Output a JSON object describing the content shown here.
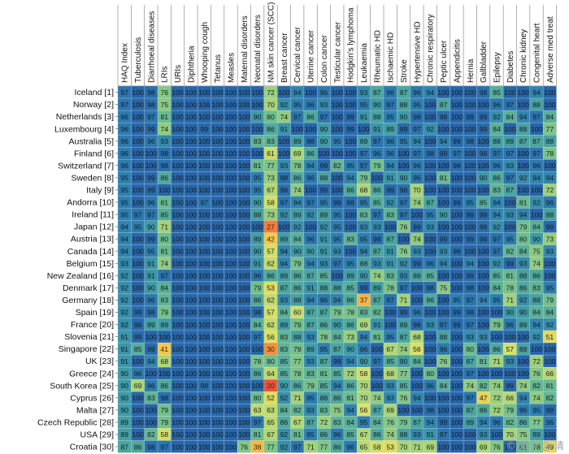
{
  "chart_data": {
    "type": "heatmap",
    "title": "",
    "color_scale": {
      "domain": [
        20,
        100
      ],
      "stops": [
        {
          "v": 20,
          "color": "#e8543a"
        },
        {
          "v": 30,
          "color": "#f0903e"
        },
        {
          "v": 40,
          "color": "#f3c54a"
        },
        {
          "v": 55,
          "color": "#dce168"
        },
        {
          "v": 70,
          "color": "#a9d37a"
        },
        {
          "v": 80,
          "color": "#6fbd8f"
        },
        {
          "v": 90,
          "color": "#3f9aa6"
        },
        {
          "v": 95,
          "color": "#2f7fb0"
        },
        {
          "v": 100,
          "color": "#2866a8"
        }
      ]
    },
    "columns": [
      "HAQ Index",
      "Tuberculosis",
      "Diarrhoeal diseases",
      "LRIs",
      "URIs",
      "Diphtheria",
      "Whooping cough",
      "Tetanus",
      "Measles",
      "Maternal disorders",
      "Neonatal disorders",
      "NM skin cancer (SCC)",
      "Breast cancer",
      "Cervical cancer",
      "Uterine cancer",
      "Colon cancer",
      "Testicular cancer",
      "Hodgkin's lymphoma",
      "Leukaemia",
      "Rheumatic HD",
      "Ischaemic HD",
      "Stroke",
      "Hypertensive HD",
      "Chronic respiratory",
      "Peptic ulcer",
      "Appendicitis",
      "Hernia",
      "Gallbladder",
      "Epilepsy",
      "Diabetes",
      "Chronic kidney",
      "Congenital heart",
      "Adverse med treat"
    ],
    "rows": [
      {
        "label": "Iceland [1]",
        "values": [
          97,
          100,
          98,
          76,
          100,
          100,
          100,
          100,
          100,
          100,
          100,
          72,
          100,
          94,
          100,
          96,
          100,
          100,
          93,
          87,
          96,
          87,
          96,
          94,
          100,
          100,
          100,
          98,
          85,
          100,
          100,
          94,
          100
        ]
      },
      {
        "label": "Norway [2]",
        "values": [
          97,
          100,
          98,
          75,
          100,
          100,
          100,
          100,
          100,
          100,
          100,
          70,
          92,
          95,
          96,
          93,
          100,
          100,
          95,
          90,
          97,
          88,
          95,
          100,
          87,
          100,
          100,
          100,
          96,
          97,
          100,
          88,
          100
        ]
      },
      {
        "label": "Netherlands [3]",
        "values": [
          96,
          100,
          97,
          81,
          100,
          100,
          100,
          100,
          100,
          100,
          90,
          80,
          74,
          97,
          86,
          97,
          100,
          99,
          91,
          88,
          95,
          90,
          98,
          100,
          98,
          100,
          99,
          99,
          92,
          84,
          94,
          97,
          84
        ]
      },
      {
        "label": "Luxembourg [4]",
        "values": [
          96,
          100,
          99,
          74,
          100,
          100,
          99,
          100,
          100,
          100,
          100,
          86,
          91,
          100,
          100,
          90,
          100,
          99,
          100,
          91,
          89,
          99,
          97,
          92,
          100,
          100,
          100,
          99,
          84,
          100,
          88,
          100,
          77
        ]
      },
      {
        "label": "Australia [5]",
        "values": [
          96,
          100,
          96,
          93,
          100,
          100,
          100,
          100,
          100,
          100,
          83,
          83,
          100,
          89,
          98,
          90,
          95,
          100,
          89,
          97,
          96,
          95,
          94,
          100,
          94,
          99,
          98,
          100,
          88,
          89,
          87,
          87,
          88
        ]
      },
      {
        "label": "Finland [6]",
        "values": [
          96,
          100,
          100,
          98,
          100,
          100,
          100,
          100,
          100,
          100,
          100,
          61,
          100,
          69,
          86,
          100,
          100,
          100,
          97,
          96,
          96,
          100,
          97,
          98,
          99,
          97,
          100,
          98,
          97,
          97,
          100,
          97,
          78
        ]
      },
      {
        "label": "Switzerland [7]",
        "values": [
          96,
          100,
          100,
          98,
          100,
          100,
          100,
          100,
          100,
          100,
          81,
          77,
          93,
          78,
          94,
          99,
          82,
          95,
          97,
          79,
          94,
          100,
          96,
          100,
          100,
          98,
          100,
          100,
          96,
          93,
          100,
          96,
          100
        ]
      },
      {
        "label": "Sweden [8]",
        "values": [
          95,
          100,
          99,
          86,
          100,
          100,
          100,
          100,
          100,
          100,
          95,
          73,
          98,
          86,
          96,
          88,
          100,
          94,
          79,
          100,
          91,
          90,
          96,
          100,
          81,
          100,
          100,
          90,
          86,
          97,
          92,
          94,
          94
        ]
      },
      {
        "label": "Italy [9]",
        "values": [
          95,
          100,
          99,
          100,
          100,
          100,
          100,
          100,
          100,
          100,
          95,
          67,
          98,
          74,
          100,
          99,
          100,
          86,
          68,
          86,
          99,
          98,
          70,
          100,
          100,
          100,
          100,
          100,
          83,
          87,
          100,
          100,
          72
        ]
      },
      {
        "label": "Andorra [10]",
        "values": [
          95,
          100,
          96,
          81,
          100,
          100,
          97,
          100,
          100,
          100,
          90,
          58,
          97,
          94,
          97,
          95,
          99,
          98,
          95,
          85,
          92,
          97,
          74,
          87,
          100,
          99,
          95,
          85,
          94,
          100,
          81,
          92,
          96
        ]
      },
      {
        "label": "Ireland [11]",
        "values": [
          95,
          97,
          97,
          85,
          100,
          100,
          100,
          100,
          100,
          100,
          88,
          73,
          92,
          89,
          92,
          89,
          95,
          100,
          83,
          97,
          83,
          97,
          100,
          95,
          90,
          100,
          99,
          99,
          94,
          93,
          94,
          100,
          88
        ]
      },
      {
        "label": "Japan [12]",
        "values": [
          94,
          95,
          90,
          71,
          100,
          100,
          100,
          100,
          100,
          100,
          100,
          27,
          100,
          92,
          100,
          92,
          95,
          100,
          93,
          93,
          100,
          76,
          99,
          93,
          100,
          100,
          100,
          98,
          92,
          100,
          79,
          84,
          99
        ]
      },
      {
        "label": "Austria [13]",
        "values": [
          94,
          100,
          99,
          80,
          100,
          100,
          100,
          100,
          100,
          100,
          89,
          42,
          89,
          84,
          96,
          91,
          95,
          83,
          95,
          98,
          87,
          100,
          74,
          100,
          99,
          100,
          99,
          99,
          97,
          95,
          80,
          90,
          73
        ]
      },
      {
        "label": "Canada [14]",
        "values": [
          94,
          100,
          95,
          81,
          100,
          100,
          100,
          100,
          100,
          100,
          90,
          57,
          94,
          90,
          90,
          91,
          93,
          100,
          94,
          87,
          91,
          76,
          93,
          100,
          93,
          98,
          100,
          100,
          97,
          82,
          84,
          75,
          93
        ]
      },
      {
        "label": "Belgium [15]",
        "values": [
          93,
          100,
          91,
          74,
          100,
          100,
          100,
          100,
          100,
          100,
          91,
          62,
          94,
          79,
          94,
          93,
          97,
          95,
          88,
          93,
          91,
          92,
          99,
          96,
          94,
          100,
          94,
          100,
          92,
          99,
          93,
          74,
          100
        ]
      },
      {
        "label": "New Zealand [16]",
        "values": [
          92,
          100,
          91,
          97,
          100,
          100,
          100,
          100,
          100,
          100,
          96,
          86,
          89,
          86,
          87,
          85,
          100,
          89,
          90,
          74,
          83,
          93,
          88,
          85,
          100,
          100,
          99,
          100,
          85,
          81,
          88,
          86,
          100
        ]
      },
      {
        "label": "Denmark [17]",
        "values": [
          92,
          100,
          90,
          84,
          100,
          100,
          100,
          100,
          100,
          100,
          79,
          53,
          87,
          86,
          91,
          88,
          88,
          85,
          99,
          89,
          78,
          97,
          100,
          98,
          75,
          100,
          98,
          100,
          84,
          78,
          86,
          83,
          95
        ]
      },
      {
        "label": "Germany [18]",
        "values": [
          92,
          100,
          96,
          83,
          100,
          100,
          100,
          100,
          100,
          100,
          86,
          62,
          93,
          88,
          94,
          96,
          94,
          86,
          37,
          87,
          97,
          71,
          100,
          86,
          100,
          95,
          97,
          94,
          95,
          71,
          92,
          88,
          79
        ]
      },
      {
        "label": "Spain [19]",
        "values": [
          92,
          99,
          98,
          79,
          100,
          100,
          100,
          100,
          100,
          100,
          98,
          57,
          84,
          60,
          87,
          87,
          79,
          78,
          83,
          82,
          100,
          99,
          96,
          100,
          100,
          99,
          98,
          100,
          100,
          90,
          90,
          84,
          84
        ]
      },
      {
        "label": "France [20]",
        "values": [
          92,
          99,
          89,
          89,
          100,
          100,
          100,
          100,
          100,
          100,
          84,
          62,
          89,
          79,
          87,
          86,
          90,
          86,
          69,
          91,
          100,
          89,
          98,
          93,
          97,
          99,
          97,
          100,
          79,
          96,
          89,
          94,
          92
        ]
      },
      {
        "label": "Slovenia [21]",
        "values": [
          91,
          99,
          100,
          100,
          100,
          100,
          100,
          100,
          100,
          100,
          97,
          56,
          83,
          88,
          93,
          78,
          84,
          73,
          94,
          81,
          95,
          87,
          68,
          100,
          88,
          100,
          93,
          93,
          100,
          100,
          100,
          92,
          51
        ]
      },
      {
        "label": "Singapore [22]",
        "values": [
          91,
          85,
          99,
          41,
          100,
          100,
          100,
          100,
          100,
          100,
          100,
          30,
          83,
          79,
          89,
          95,
          87,
          90,
          96,
          100,
          67,
          74,
          56,
          100,
          96,
          100,
          80,
          100,
          86,
          57,
          88,
          100,
          100
        ]
      },
      {
        "label": "UK [23]",
        "values": [
          91,
          100,
          94,
          68,
          100,
          100,
          100,
          100,
          100,
          100,
          78,
          80,
          85,
          77,
          93,
          87,
          99,
          94,
          90,
          97,
          85,
          90,
          84,
          100,
          76,
          100,
          87,
          81,
          71,
          93,
          100,
          72,
          100
        ]
      },
      {
        "label": "Greece [24]",
        "values": [
          90,
          96,
          100,
          100,
          100,
          100,
          100,
          100,
          100,
          100,
          86,
          64,
          85,
          78,
          83,
          81,
          85,
          72,
          58,
          100,
          68,
          77,
          100,
          80,
          100,
          100,
          97,
          100,
          100,
          100,
          100,
          76,
          66
        ]
      },
      {
        "label": "South Korea [25]",
        "values": [
          90,
          69,
          96,
          86,
          100,
          100,
          98,
          100,
          100,
          100,
          100,
          20,
          90,
          86,
          79,
          85,
          94,
          86,
          70,
          100,
          93,
          85,
          100,
          96,
          84,
          100,
          74,
          82,
          74,
          99,
          74,
          82,
          81
        ]
      },
      {
        "label": "Cyprus [26]",
        "values": [
          90,
          100,
          83,
          98,
          100,
          100,
          100,
          100,
          100,
          100,
          80,
          52,
          92,
          71,
          95,
          88,
          86,
          81,
          70,
          74,
          93,
          76,
          94,
          100,
          100,
          100,
          97,
          47,
          72,
          66,
          94,
          74,
          82
        ]
      },
      {
        "label": "Malta [27]",
        "values": [
          90,
          100,
          100,
          79,
          100,
          100,
          100,
          100,
          100,
          100,
          63,
          63,
          84,
          82,
          93,
          83,
          75,
          94,
          56,
          87,
          69,
          100,
          100,
          98,
          100,
          100,
          87,
          86,
          72,
          79,
          96,
          95,
          99
        ]
      },
      {
        "label": "Czech Republic [28]",
        "values": [
          89,
          100,
          100,
          79,
          100,
          100,
          100,
          100,
          100,
          100,
          97,
          65,
          86,
          67,
          87,
          72,
          83,
          84,
          95,
          84,
          76,
          79,
          87,
          94,
          99,
          100,
          89,
          94,
          96,
          82,
          86,
          77,
          96
        ]
      },
      {
        "label": "USA [29]",
        "values": [
          89,
          100,
          82,
          58,
          100,
          100,
          100,
          100,
          100,
          100,
          81,
          67,
          92,
          81,
          95,
          86,
          96,
          85,
          67,
          86,
          74,
          88,
          93,
          91,
          97,
          100,
          100,
          93,
          100,
          70,
          75,
          89,
          100
        ]
      },
      {
        "label": "Croatia [30]",
        "values": [
          87,
          86,
          98,
          97,
          100,
          100,
          100,
          100,
          100,
          76,
          38,
          77,
          92,
          97,
          71,
          77,
          86,
          96,
          65,
          58,
          53,
          70,
          71,
          69,
          100,
          100,
          100,
          69,
          76,
          100,
          81,
          78,
          49
        ]
      }
    ]
  },
  "watermark": "© 知乎 @ 清"
}
